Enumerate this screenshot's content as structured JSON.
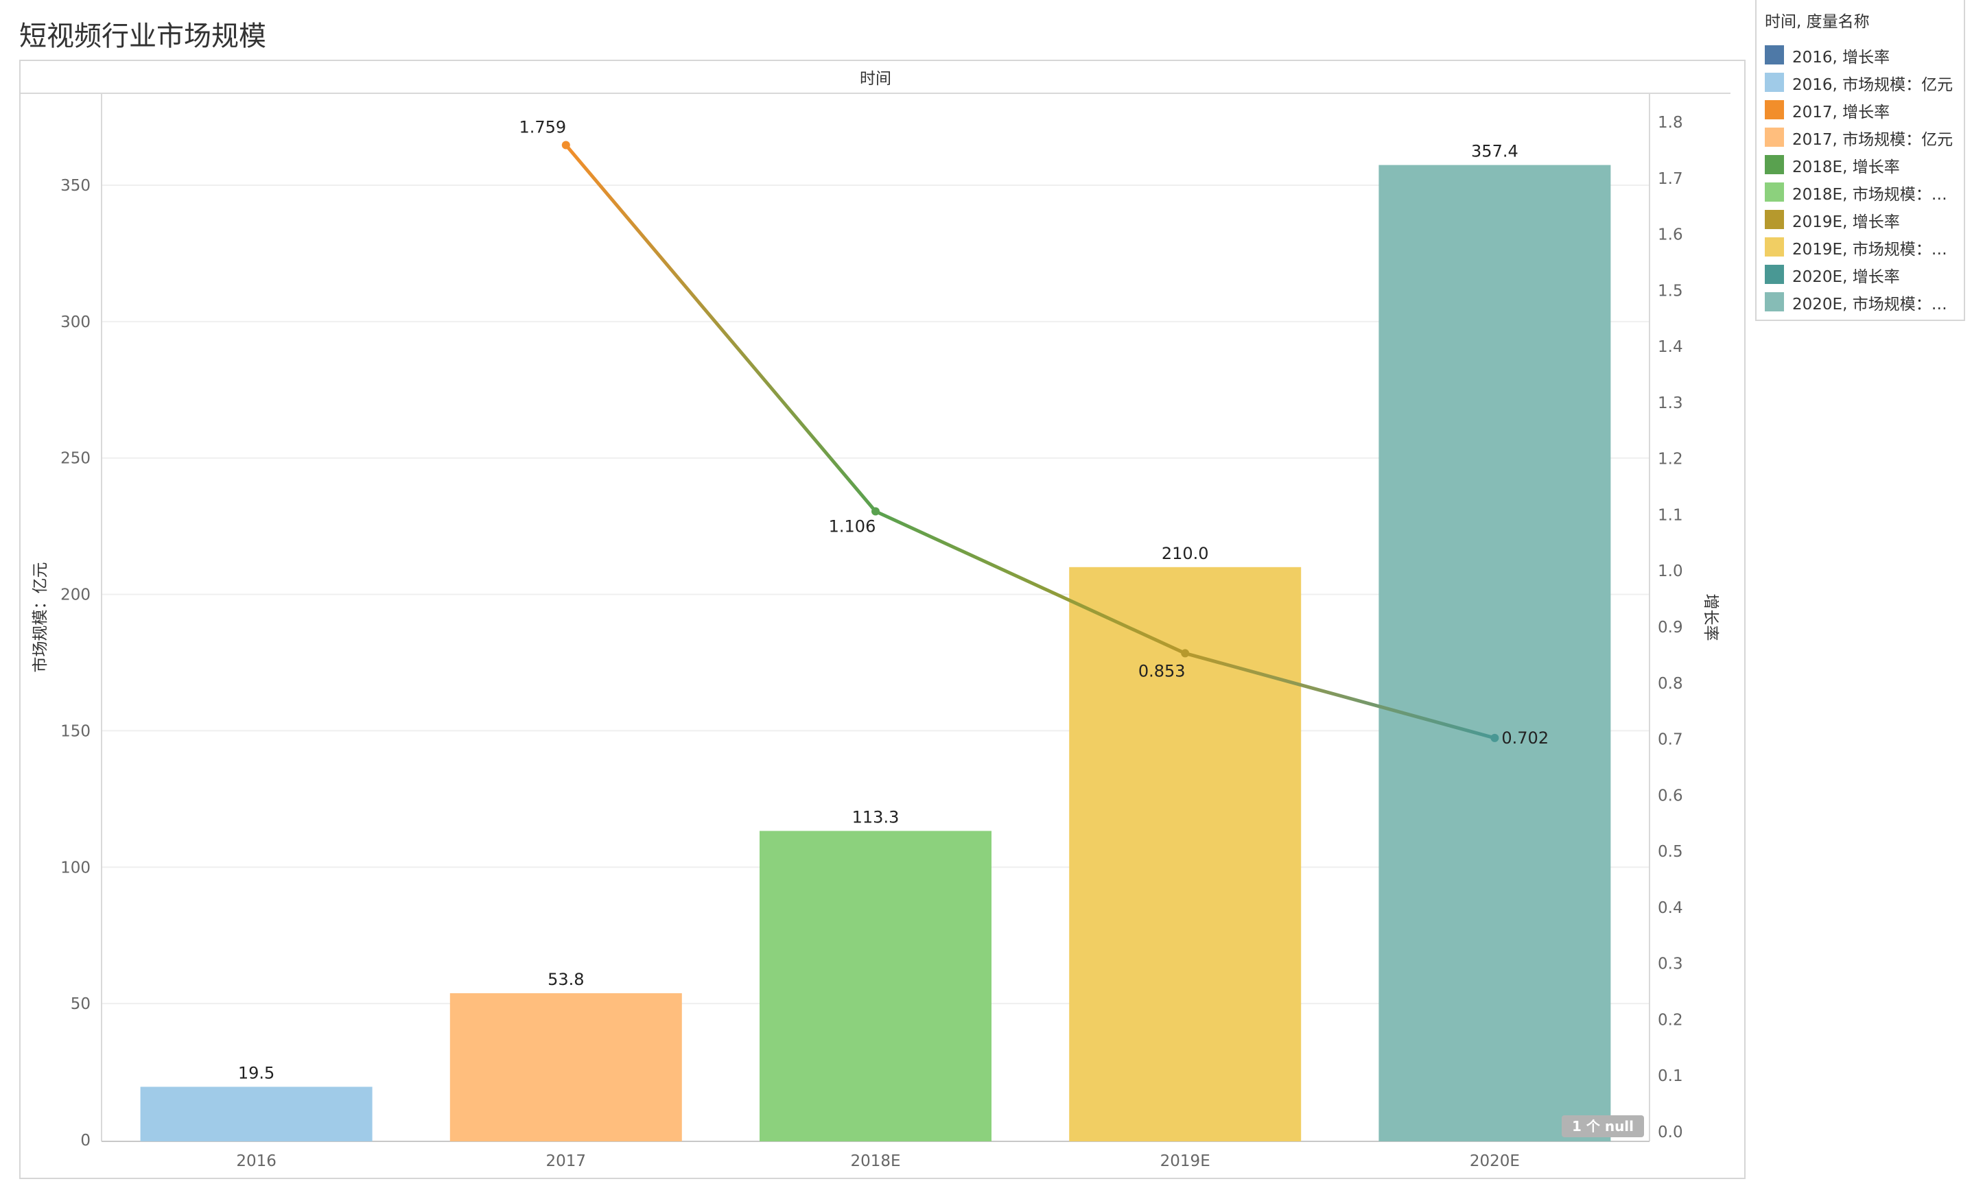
{
  "title": "短视频行业市场规模",
  "chart_data": {
    "type": "bar",
    "column_header": "时间",
    "categories": [
      "2016",
      "2017",
      "2018E",
      "2019E",
      "2020E"
    ],
    "bar_values": [
      19.5,
      53.8,
      113.3,
      210.0,
      357.4
    ],
    "bar_labels": [
      "19.5",
      "53.8",
      "113.3",
      "210.0",
      "357.4"
    ],
    "bar_colors": [
      "#a0cbe8",
      "#ffbe7d",
      "#8cd17d",
      "#f1ce63",
      "#86bcb6"
    ],
    "line_values": [
      null,
      1.759,
      1.106,
      0.853,
      0.702
    ],
    "line_labels": [
      "",
      "1.759",
      "1.106",
      "0.853",
      "0.702"
    ],
    "line_colors": [
      "#4e79a7",
      "#f28e2b",
      "#59a14f",
      "#b6992d",
      "#499894"
    ],
    "ylabel_left": "市场规模：亿元",
    "ylabel_right": "增长率",
    "ylim_left": [
      0,
      380
    ],
    "ylim_right": [
      0,
      1.85
    ],
    "yticks_left": [
      0,
      50,
      100,
      150,
      200,
      250,
      300,
      350
    ],
    "yticks_right": [
      0.0,
      0.1,
      0.2,
      0.3,
      0.4,
      0.5,
      0.6,
      0.7,
      0.8,
      0.9,
      1.0,
      1.1,
      1.2,
      1.3,
      1.4,
      1.5,
      1.6,
      1.7,
      1.8
    ],
    "null_badge": "1 个 null",
    "grid": true,
    "legend_position": "right"
  },
  "legend": {
    "title": "时间, 度量名称",
    "items": [
      {
        "label": "2016, 增长率",
        "color": "#4e79a7"
      },
      {
        "label": "2016, 市场规模：亿元",
        "color": "#a0cbe8"
      },
      {
        "label": "2017, 增长率",
        "color": "#f28e2b"
      },
      {
        "label": "2017, 市场规模：亿元",
        "color": "#ffbe7d"
      },
      {
        "label": "2018E, 增长率",
        "color": "#59a14f"
      },
      {
        "label": "2018E, 市场规模：亿..",
        "color": "#8cd17d"
      },
      {
        "label": "2019E, 增长率",
        "color": "#b6992d"
      },
      {
        "label": "2019E, 市场规模：亿..",
        "color": "#f1ce63"
      },
      {
        "label": "2020E, 增长率",
        "color": "#499894"
      },
      {
        "label": "2020E, 市场规模：亿..",
        "color": "#86bcb6"
      }
    ]
  }
}
